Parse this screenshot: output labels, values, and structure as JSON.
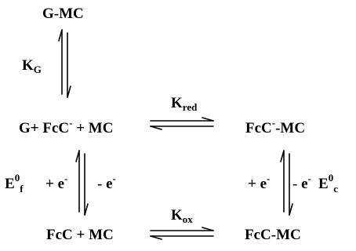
{
  "species": {
    "g_mc": "G-MC",
    "reactants_reduced": {
      "main": "G+ FcC",
      "charge": "-",
      "tail": " + MC"
    },
    "complex_reduced": {
      "main": "FcC",
      "charge": "-",
      "tail": "-MC"
    },
    "reactants_oxidized": "FcC + MC",
    "complex_oxidized": "FcC-MC"
  },
  "constants": {
    "kg": {
      "symbol": "K",
      "subscript": "G"
    },
    "kred": {
      "symbol": "K",
      "subscript": "red"
    },
    "kox": {
      "symbol": "K",
      "subscript": "ox"
    }
  },
  "potentials": {
    "ef": {
      "symbol": "E",
      "superscript": "0",
      "subscript": "f"
    },
    "ec": {
      "symbol": "E",
      "superscript": "0",
      "subscript": "c"
    }
  },
  "electron_steps": {
    "left_gain": {
      "base": "+ e",
      "charge": "-"
    },
    "left_loss": {
      "base": "- e",
      "charge": "-"
    },
    "right_gain": {
      "base": "+ e",
      "charge": "-"
    },
    "right_loss": {
      "base": "- e",
      "charge": "-"
    }
  }
}
